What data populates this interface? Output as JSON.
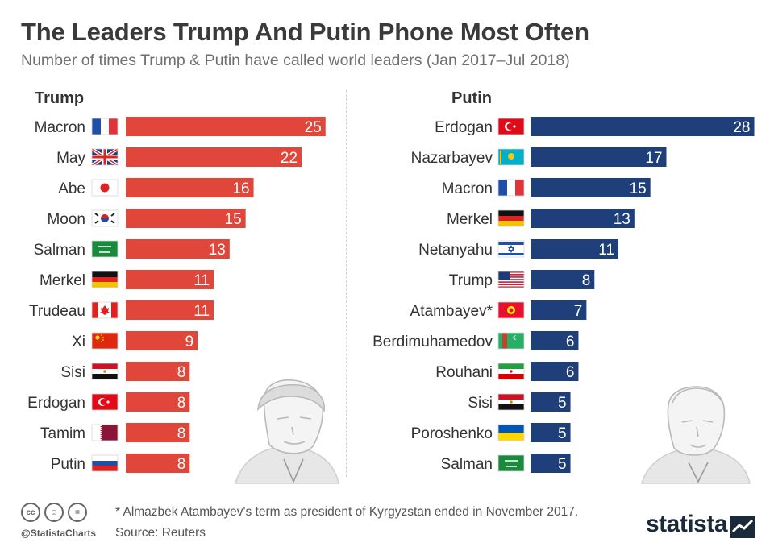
{
  "header": {
    "title": "The Leaders Trump And Putin Phone Most Often",
    "subtitle": "Number of times Trump & Putin have called world leaders (Jan 2017–Jul 2018)"
  },
  "colors": {
    "trump_bar": "#e0473a",
    "putin_bar": "#1e3f7a",
    "label_text": "#333333",
    "value_text": "#ffffff"
  },
  "chart_data": [
    {
      "type": "bar",
      "orientation": "horizontal",
      "title": "Trump",
      "categories": [
        "Macron",
        "May",
        "Abe",
        "Moon",
        "Salman",
        "Merkel",
        "Trudeau",
        "Xi",
        "Sisi",
        "Erdogan",
        "Tamim",
        "Putin"
      ],
      "flags": [
        "france",
        "uk",
        "japan",
        "south-korea",
        "saudi-arabia",
        "germany",
        "canada",
        "china",
        "egypt",
        "turkey",
        "qatar",
        "russia"
      ],
      "values": [
        25,
        22,
        16,
        15,
        13,
        11,
        11,
        9,
        8,
        8,
        8,
        8
      ],
      "xlim": [
        0,
        28
      ],
      "data_labels": true,
      "grid": false
    },
    {
      "type": "bar",
      "orientation": "horizontal",
      "title": "Putin",
      "categories": [
        "Erdogan",
        "Nazarbayev",
        "Macron",
        "Merkel",
        "Netanyahu",
        "Trump",
        "Atambayev*",
        "Berdimuhamedov",
        "Rouhani",
        "Sisi",
        "Poroshenko",
        "Salman"
      ],
      "flags": [
        "turkey",
        "kazakhstan",
        "france",
        "germany",
        "israel",
        "usa",
        "kyrgyzstan",
        "turkmenistan",
        "iran",
        "egypt",
        "ukraine",
        "saudi-arabia"
      ],
      "values": [
        28,
        17,
        15,
        13,
        11,
        8,
        7,
        6,
        6,
        5,
        5,
        5
      ],
      "xlim": [
        0,
        28
      ],
      "data_labels": true,
      "grid": false
    }
  ],
  "footer": {
    "note": "* Almazbek Atambayev's term as president of Kyrgyzstan ended in November 2017.",
    "source": "Source: Reuters",
    "handle": "@StatistaCharts",
    "logo": "statista",
    "cc_icons": [
      "cc-icon",
      "by-icon",
      "nd-icon"
    ],
    "cc_glyphs": [
      "cc",
      "☺",
      "="
    ]
  },
  "illustrations": [
    "trump-portrait-icon",
    "putin-portrait-icon"
  ]
}
